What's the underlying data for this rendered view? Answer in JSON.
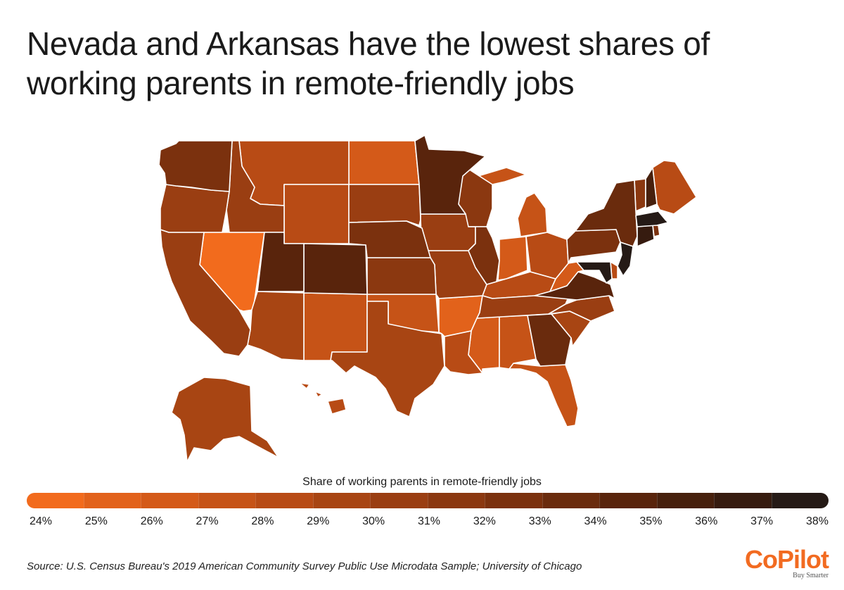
{
  "title": "Nevada and Arkansas have the lowest shares of working parents in remote-friendly jobs",
  "legend": {
    "title": "Share of working parents in remote-friendly jobs",
    "ticks": [
      "24%",
      "25%",
      "26%",
      "27%",
      "28%",
      "29%",
      "30%",
      "31%",
      "32%",
      "33%",
      "34%",
      "35%",
      "36%",
      "37%",
      "38%"
    ],
    "scale_colors": [
      "#f26b1d",
      "#e2621b",
      "#d45a19",
      "#c65317",
      "#b84b15",
      "#a84513",
      "#9a3e12",
      "#8b3810",
      "#7b310e",
      "#6a2b0d",
      "#59240c",
      "#47200d",
      "#361b0f",
      "#251a16"
    ]
  },
  "map_data": {
    "type": "choropleth",
    "region": "United States",
    "unit": "%",
    "states": [
      {
        "state": "NV",
        "value": 24.2
      },
      {
        "state": "AR",
        "value": 25.0
      },
      {
        "state": "ND",
        "value": 26.0
      },
      {
        "state": "WV",
        "value": 26.2
      },
      {
        "state": "IN",
        "value": 26.5
      },
      {
        "state": "MS",
        "value": 26.6
      },
      {
        "state": "NM",
        "value": 27.3
      },
      {
        "state": "MI",
        "value": 27.4
      },
      {
        "state": "FL",
        "value": 27.6
      },
      {
        "state": "OK",
        "value": 27.8
      },
      {
        "state": "AL",
        "value": 27.9
      },
      {
        "state": "LA",
        "value": 28.0
      },
      {
        "state": "MT",
        "value": 28.0
      },
      {
        "state": "KY",
        "value": 28.2
      },
      {
        "state": "ME",
        "value": 28.2
      },
      {
        "state": "WY",
        "value": 28.3
      },
      {
        "state": "OH",
        "value": 28.4
      },
      {
        "state": "HI",
        "value": 28.5
      },
      {
        "state": "DE",
        "value": 28.4
      },
      {
        "state": "AK",
        "value": 29.0
      },
      {
        "state": "AZ",
        "value": 29.3
      },
      {
        "state": "TX",
        "value": 29.6
      },
      {
        "state": "SC",
        "value": 29.8
      },
      {
        "state": "CA",
        "value": 30.0
      },
      {
        "state": "ID",
        "value": 30.0
      },
      {
        "state": "TN",
        "value": 30.0
      },
      {
        "state": "SD",
        "value": 30.2
      },
      {
        "state": "MO",
        "value": 30.4
      },
      {
        "state": "NC",
        "value": 30.6
      },
      {
        "state": "OR",
        "value": 30.8
      },
      {
        "state": "IA",
        "value": 30.8
      },
      {
        "state": "KS",
        "value": 31.0
      },
      {
        "state": "WI",
        "value": 31.0
      },
      {
        "state": "VT",
        "value": 31.2
      },
      {
        "state": "PA",
        "value": 32.0
      },
      {
        "state": "NE",
        "value": 32.3
      },
      {
        "state": "IL",
        "value": 32.5
      },
      {
        "state": "RI",
        "value": 32.6
      },
      {
        "state": "WA",
        "value": 32.6
      },
      {
        "state": "GA",
        "value": 33.0
      },
      {
        "state": "NY",
        "value": 33.6
      },
      {
        "state": "CO",
        "value": 34.3
      },
      {
        "state": "UT",
        "value": 34.4
      },
      {
        "state": "MN",
        "value": 34.6
      },
      {
        "state": "VA",
        "value": 34.8
      },
      {
        "state": "NH",
        "value": 35.9
      },
      {
        "state": "CT",
        "value": 36.2
      },
      {
        "state": "MA",
        "value": 37.2
      },
      {
        "state": "NJ",
        "value": 37.4
      },
      {
        "state": "MD",
        "value": 37.6
      }
    ]
  },
  "source": "Source:  U.S. Census Bureau's 2019 American Community Survey Public Use Microdata Sample; University of Chicago",
  "logo": {
    "brand": "CoPilot",
    "tagline": "Buy Smarter",
    "color": "#f26b21"
  }
}
